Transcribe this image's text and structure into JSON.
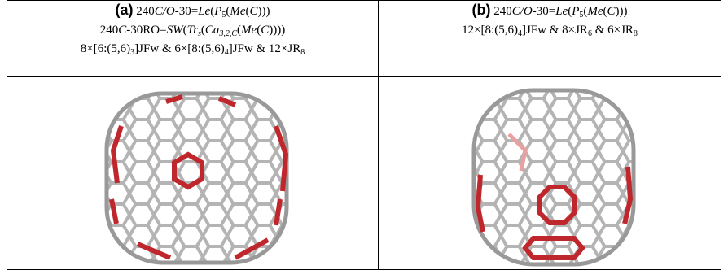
{
  "panels": [
    {
      "label": "(a)",
      "lines": [
        [
          "240",
          "C/O",
          "-30=",
          "Le",
          "(",
          "P",
          "5",
          "(",
          "Me",
          "(",
          "C",
          ")))"
        ],
        [
          "240",
          "C",
          "-30RO=",
          "SW",
          "(",
          "Tr",
          "s",
          "(",
          "Ca",
          "3,2,C",
          "(",
          "Me",
          "(",
          "C",
          "))))"
        ],
        [
          "8×[6:(5,6)",
          "3",
          "]JFw & 6×[8:(5,6)",
          "4",
          "]JFw & 12×JR",
          "8"
        ]
      ]
    },
    {
      "label": "(b)",
      "lines": [
        [
          "240",
          "C/O",
          "-30=",
          "Le",
          "(",
          "P",
          "5",
          "(",
          "Me",
          "(",
          "C",
          ")))"
        ],
        [
          "12×[8:(5,6)",
          "4",
          "]JFw & 8×JR",
          "6",
          " & 6×JR",
          "8"
        ]
      ]
    }
  ]
}
